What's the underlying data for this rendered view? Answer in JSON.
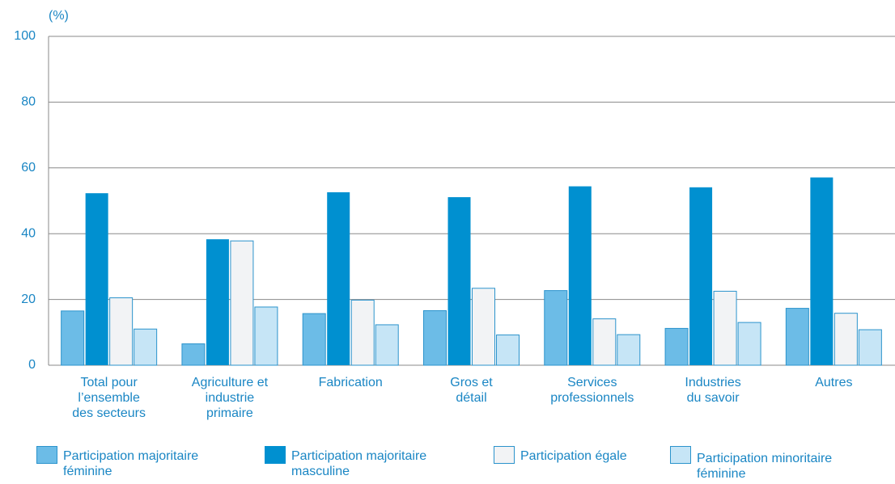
{
  "chart_data": {
    "type": "bar",
    "y_label": "(%)",
    "categories": [
      "Total pour\nl’ensemble\ndes secteurs",
      "Agriculture et\nindustrie\nprimaire",
      "Fabrication",
      "Gros et\ndétail",
      "Services\nprofessionnels",
      "Industries\ndu savoir",
      "Autres"
    ],
    "series": [
      {
        "name": "Participation majoritaire\nféminine",
        "color": "#6cbce7",
        "values": [
          16.5,
          6.5,
          15.7,
          16.6,
          22.7,
          11.2,
          17.3
        ]
      },
      {
        "name": "Participation majoritaire\nmasculine",
        "color": "#0090d0",
        "values": [
          52.3,
          38.3,
          52.6,
          51.1,
          54.4,
          54.1,
          57.1
        ]
      },
      {
        "name": "Participation égale",
        "color": "#f2f3f5",
        "values": [
          20.5,
          37.8,
          19.8,
          23.4,
          14.1,
          22.5,
          15.8
        ]
      },
      {
        "name": "Participation minoritaire\nféminine",
        "color": "#c6e5f6",
        "values": [
          11,
          17.7,
          12.3,
          9.2,
          9.3,
          13,
          10.8
        ]
      }
    ],
    "ylim": [
      0,
      100
    ],
    "yticks": [
      0,
      20,
      40,
      60,
      80,
      100
    ],
    "grid": true
  }
}
